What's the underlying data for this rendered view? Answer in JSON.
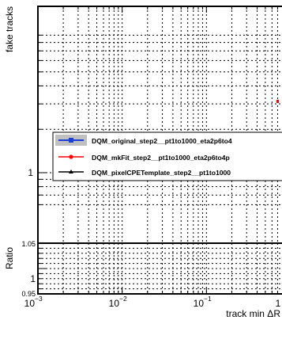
{
  "chart_data": {
    "type": "line",
    "title": "",
    "xlabel": "track min ΔR",
    "xscale": "log",
    "xlim": [
      0.001,
      1
    ],
    "main_panel": {
      "ylabel": "fake tracks",
      "yscale": "log",
      "grid": true,
      "ytick_labels": [
        "1"
      ]
    },
    "ratio_panel": {
      "ylabel": "Ratio",
      "ylim": [
        0.95,
        1.05
      ],
      "ytick_labels": [
        "0.95",
        "1",
        "1.05"
      ],
      "grid": true
    },
    "xtick_labels": [
      {
        "base": "10",
        "exp": "−3"
      },
      {
        "base": "10",
        "exp": "−2"
      },
      {
        "base": "10",
        "exp": "−1"
      },
      {
        "base": "1",
        "exp": ""
      }
    ],
    "legend": {
      "placement": "center-right",
      "entries": [
        {
          "label": "DQM_original_step2__pt1to1000_eta2p6to4",
          "color": "#1a3fd6",
          "marker": "square",
          "band": "#c0c0c0"
        },
        {
          "label": "DQM_mkFit_step2__pt1to1000_eta2p6to4p",
          "color": "#ff0000",
          "marker": "circle"
        },
        {
          "label": "DQM_pixelCPETemplate_step2__pt1to1000",
          "color": "#000000",
          "marker": "triangle"
        }
      ]
    },
    "series": [
      {
        "name": "DQM_original_step2__pt1to1000_eta2p6to4",
        "color": "#1a3fd6",
        "x": [],
        "y": []
      },
      {
        "name": "DQM_mkFit_step2__pt1to1000_eta2p6to4p",
        "color": "#ff0000",
        "x": [],
        "y": []
      },
      {
        "name": "DQM_pixelCPETemplate_step2__pt1to1000",
        "color": "#000000",
        "x": [],
        "y": []
      }
    ]
  }
}
